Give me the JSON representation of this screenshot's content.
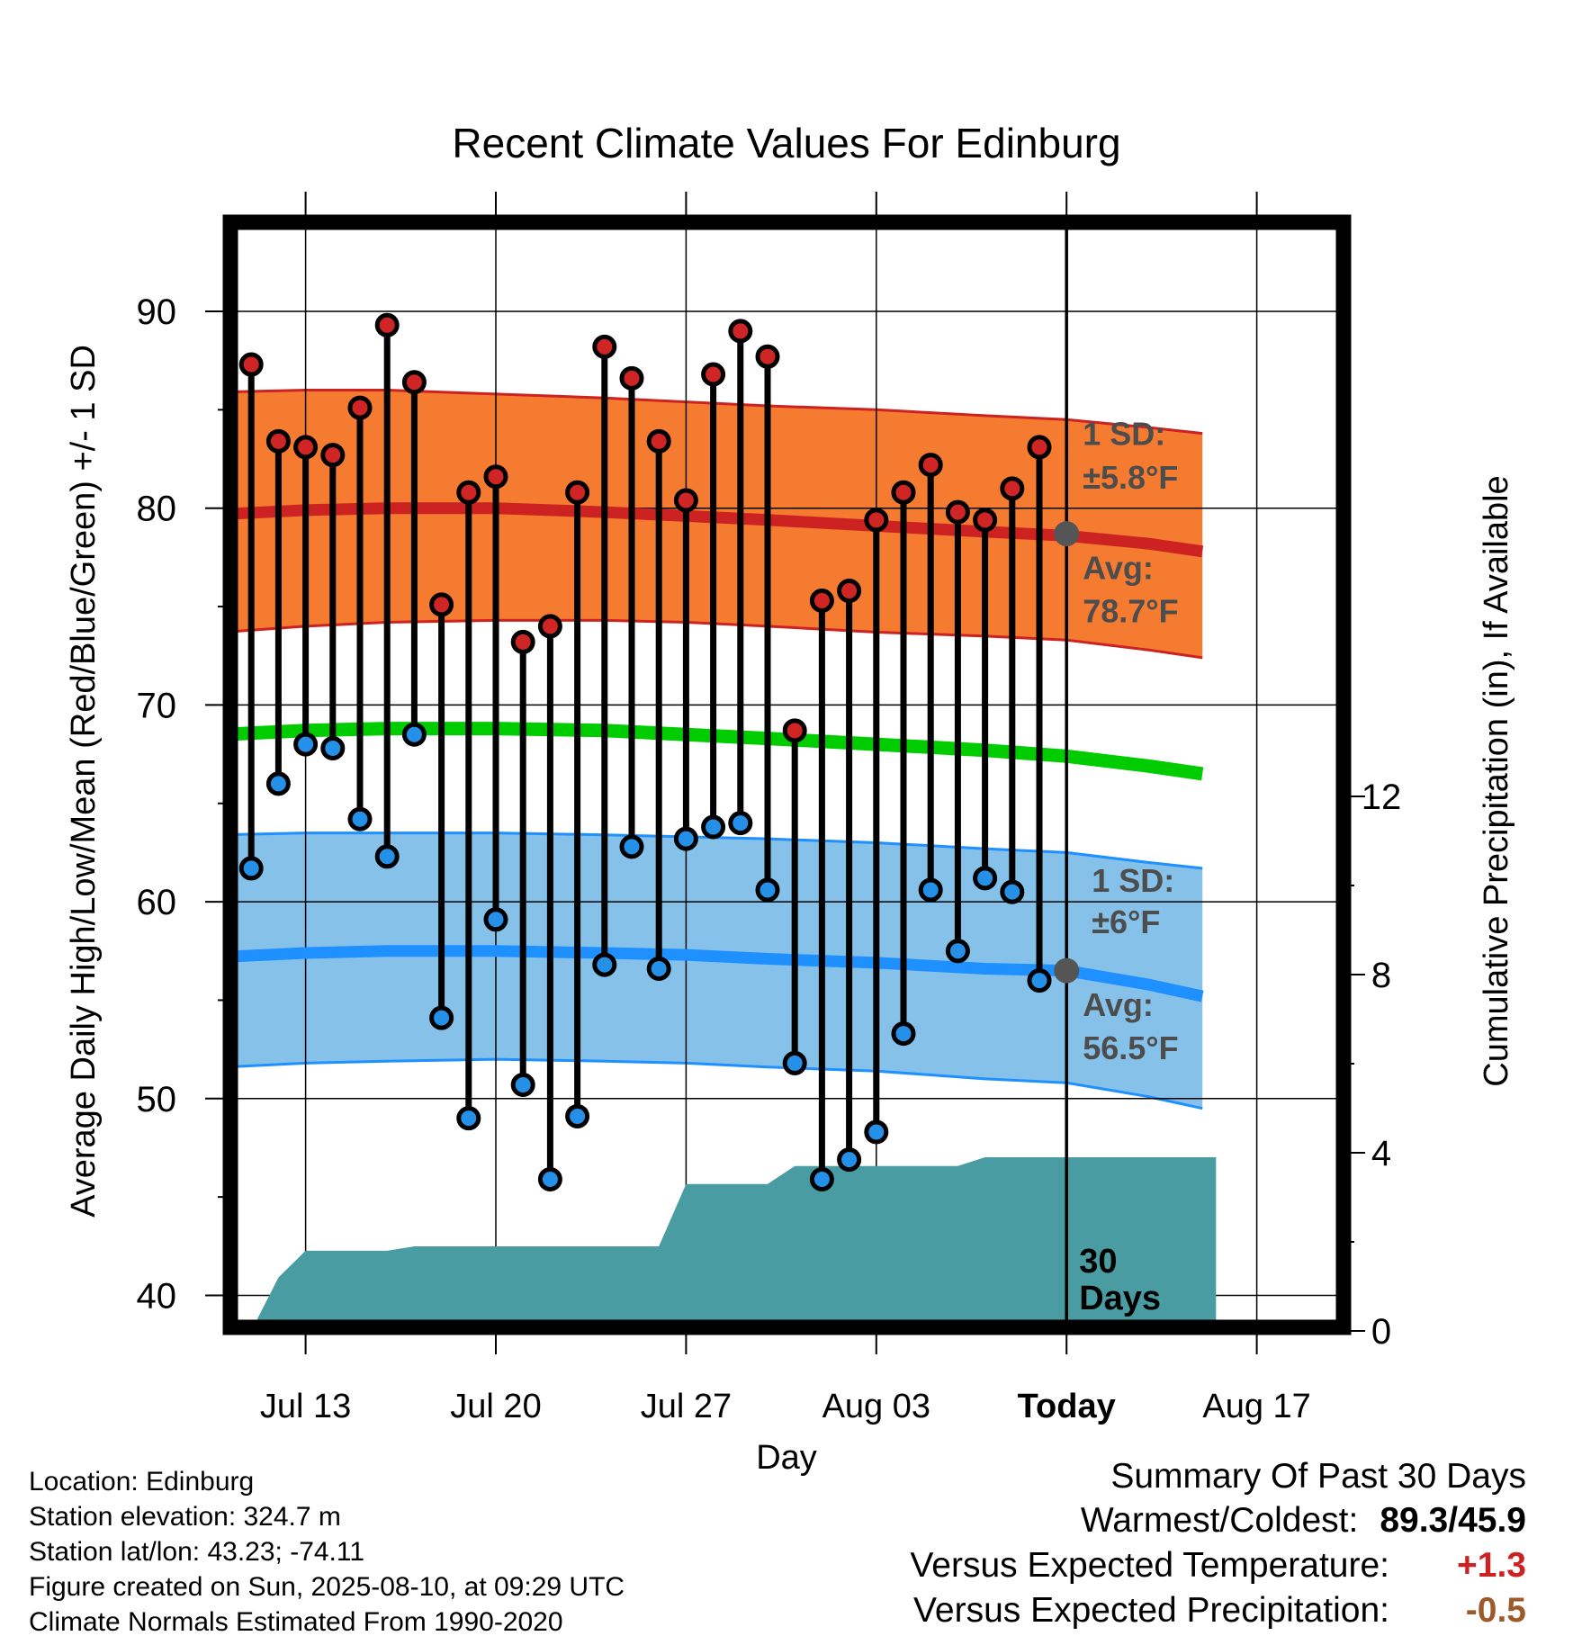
{
  "colors": {
    "high_band": "#f47b30",
    "high_edge": "#cc2222",
    "high_avg": "#cc2222",
    "low_band": "#85c1e9",
    "low_edge": "#1e90ff",
    "low_avg": "#1e90ff",
    "mean_line": "#00cc00",
    "precip_fill": "#4a9ca3",
    "high_dot": "#d02525",
    "low_dot": "#2490e8",
    "today_dot": "#555555",
    "annotation": "#4d4d4d",
    "temp_anomaly": "#cc2222",
    "precip_anomaly": "#9c5a2a"
  },
  "chart_data": {
    "type": "line",
    "title": "Recent Climate Values For Edinburg",
    "xlabel": "Day",
    "ylabel": "Average Daily High/Low/Mean (Red/Blue/Green) +/- 1 SD",
    "y2label": "Cumulative Precipitation (in), If Available",
    "ylim": [
      38,
      95
    ],
    "y2lim": [
      0,
      21.15
    ],
    "yticks": [
      40,
      50,
      60,
      70,
      80,
      90
    ],
    "y2ticks": [
      0,
      4,
      8,
      12
    ],
    "xlim": [
      0,
      36.5
    ],
    "xticks": [
      {
        "x": 3,
        "label": "Jul 13"
      },
      {
        "x": 10,
        "label": "Jul 20"
      },
      {
        "x": 17,
        "label": "Jul 27"
      },
      {
        "x": 24,
        "label": "Aug 03"
      },
      {
        "x": 31,
        "label": "Today"
      },
      {
        "x": 38,
        "label": "Aug 17"
      }
    ],
    "grid": true,
    "today_x": 31,
    "today_label": "30 Days",
    "daily_x": [
      1,
      2,
      3,
      4,
      5,
      6,
      7,
      8,
      9,
      10,
      11,
      12,
      13,
      14,
      15,
      16,
      17,
      18,
      19,
      20,
      21,
      22,
      23,
      24,
      25,
      26,
      27,
      28,
      29,
      30
    ],
    "daily_high": [
      87.3,
      83.4,
      83.1,
      82.7,
      85.1,
      89.3,
      86.4,
      75.1,
      80.8,
      81.6,
      73.2,
      74.0,
      80.8,
      88.2,
      86.6,
      83.4,
      80.4,
      86.8,
      89.0,
      87.7,
      68.7,
      75.3,
      75.8,
      79.4,
      80.8,
      82.2,
      79.8,
      79.4,
      81.0,
      83.1
    ],
    "daily_low": [
      61.7,
      66.0,
      68.0,
      67.8,
      64.2,
      62.3,
      68.5,
      54.1,
      49.0,
      59.1,
      50.7,
      45.9,
      49.1,
      56.8,
      62.8,
      56.6,
      63.2,
      63.8,
      64.0,
      60.6,
      51.8,
      45.9,
      46.9,
      48.3,
      53.3,
      60.6,
      57.5,
      61.2,
      60.5,
      56.0
    ],
    "normal_x": [
      0,
      3,
      6,
      10,
      14,
      17,
      20,
      24,
      28,
      31,
      34,
      36
    ],
    "normal_high": [
      79.7,
      79.9,
      80.0,
      80.0,
      79.8,
      79.6,
      79.4,
      79.1,
      78.8,
      78.6,
      78.2,
      77.8
    ],
    "normal_high_upper": [
      85.9,
      86.0,
      86.0,
      85.8,
      85.6,
      85.4,
      85.2,
      85.0,
      84.7,
      84.5,
      84.1,
      83.8
    ],
    "normal_high_lower": [
      73.7,
      74.0,
      74.2,
      74.3,
      74.3,
      74.2,
      74.0,
      73.7,
      73.5,
      73.3,
      72.8,
      72.4
    ],
    "normal_mean": [
      68.5,
      68.7,
      68.8,
      68.8,
      68.7,
      68.5,
      68.3,
      68.0,
      67.7,
      67.4,
      66.9,
      66.5
    ],
    "normal_low": [
      57.2,
      57.4,
      57.5,
      57.5,
      57.4,
      57.3,
      57.1,
      56.9,
      56.6,
      56.5,
      55.8,
      55.2
    ],
    "normal_low_upper": [
      63.4,
      63.5,
      63.5,
      63.5,
      63.4,
      63.3,
      63.2,
      63.0,
      62.7,
      62.5,
      62.0,
      61.7
    ],
    "normal_low_lower": [
      51.6,
      51.8,
      51.9,
      52.0,
      51.9,
      51.8,
      51.6,
      51.4,
      51.0,
      50.8,
      50.1,
      49.5
    ],
    "precip_x": [
      1,
      2,
      3,
      6,
      7,
      16,
      17,
      20,
      21,
      27,
      28,
      36.5
    ],
    "precip_cum": [
      0.0,
      1.2,
      1.8,
      1.8,
      1.9,
      1.9,
      3.3,
      3.3,
      3.7,
      3.7,
      3.9,
      3.9
    ],
    "high_sd_label": "1 SD:",
    "high_sd_value": "±5.8°F",
    "high_avg_label": "Avg:",
    "high_avg_value": "78.7°F",
    "low_sd_label": "1 SD:",
    "low_sd_value": "±6°F",
    "low_avg_label": "Avg:",
    "low_avg_value": "56.5°F"
  },
  "footer": {
    "location": "Location: Edinburg",
    "elevation": "Station elevation: 324.7 m",
    "latlon": "Station lat/lon: 43.23; -74.11",
    "created": "Figure created on Sun, 2025-08-10, at 09:29 UTC",
    "normals": "Climate Normals Estimated From 1990-2020"
  },
  "summary": {
    "heading": "Summary Of Past 30 Days",
    "warm_cold_label": "Warmest/Coldest:",
    "warm_cold_value": "89.3/45.9",
    "temp_label": "Versus Expected Temperature:",
    "temp_value": "+1.3",
    "precip_label": "Versus Expected Precipitation:",
    "precip_value": "-0.5"
  }
}
